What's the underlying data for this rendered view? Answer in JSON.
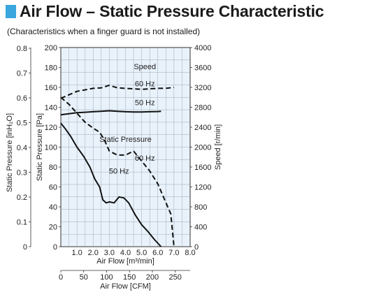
{
  "header": {
    "title": "Air Flow – Static Pressure Characteristic",
    "subtitle": "(Characteristics when a finger guard is not installed)",
    "accent_color": "#3aa6dd"
  },
  "chart_data": {
    "type": "line",
    "plot_background": "#e9f2fb",
    "grid": true,
    "axes": {
      "x_flow": {
        "label": "Air Flow [m³/min]",
        "range": [
          0,
          8.0
        ],
        "ticks": [
          "1.0",
          "2.0",
          "3.0",
          "4.0",
          "5.0",
          "6.0",
          "7.0",
          "8.0"
        ],
        "tick_values": [
          1,
          2,
          3,
          4,
          5,
          6,
          7,
          8
        ]
      },
      "x_cfm": {
        "label": "Air Flow [CFM]",
        "range": [
          0,
          282.5
        ],
        "ticks": [
          "0",
          "50",
          "100",
          "150",
          "200",
          "250"
        ],
        "tick_values": [
          0,
          50,
          100,
          150,
          200,
          250
        ]
      },
      "y_pa": {
        "label": "Static Pressure [Pa]",
        "range": [
          0,
          200
        ],
        "ticks": [
          "0",
          "20",
          "40",
          "60",
          "80",
          "100",
          "120",
          "140",
          "160",
          "180",
          "200"
        ],
        "tick_values": [
          0,
          20,
          40,
          60,
          80,
          100,
          120,
          140,
          160,
          180,
          200
        ]
      },
      "y_inh2o": {
        "label": "Static Pressure [inH₂O]",
        "range": [
          0,
          0.803
        ],
        "ticks": [
          "0",
          "0.1",
          "0.2",
          "0.3",
          "0.4",
          "0.5",
          "0.6",
          "0.7",
          "0.8"
        ],
        "tick_values": [
          0,
          0.1,
          0.2,
          0.3,
          0.4,
          0.5,
          0.6,
          0.7,
          0.8
        ]
      },
      "y_speed": {
        "label": "Speed [r/min]",
        "range": [
          0,
          4000
        ],
        "ticks": [
          "0",
          "400",
          "800",
          "1200",
          "1600",
          "2000",
          "2400",
          "2800",
          "3200",
          "3600",
          "4000"
        ],
        "tick_values": [
          0,
          400,
          800,
          1200,
          1600,
          2000,
          2400,
          2800,
          3200,
          3600,
          4000
        ]
      }
    },
    "series": [
      {
        "name": "Static Pressure 50 Hz",
        "axis": "pressure",
        "style": "solid",
        "x": [
          0,
          0.3,
          0.6,
          1.0,
          1.4,
          1.8,
          2.1,
          2.4,
          2.6,
          2.8,
          3.0,
          3.3,
          3.6,
          3.9,
          4.2,
          4.6,
          5.0,
          5.4,
          5.8,
          6.2
        ],
        "y": [
          124,
          118,
          111,
          100,
          91,
          80,
          68,
          60,
          47,
          44,
          45,
          44,
          50,
          49,
          44,
          32,
          22,
          15,
          7,
          0
        ]
      },
      {
        "name": "Static Pressure 60 Hz",
        "axis": "pressure",
        "style": "dashed",
        "x": [
          0,
          0.5,
          1.0,
          1.5,
          2.0,
          2.4,
          2.7,
          3.0,
          3.5,
          4.0,
          4.5,
          5.0,
          5.5,
          6.0,
          6.4,
          6.8,
          7.0
        ],
        "y": [
          150,
          143,
          134,
          125,
          119,
          115,
          107,
          96,
          92,
          92,
          96,
          86,
          76,
          63,
          48,
          33,
          0
        ]
      },
      {
        "name": "Speed 60 Hz",
        "axis": "speed",
        "style": "dashed",
        "x": [
          0,
          0.5,
          1.0,
          1.5,
          2.0,
          2.5,
          3.0,
          3.5,
          4.0,
          4.5,
          5.0,
          5.5,
          6.0,
          6.5,
          7.0
        ],
        "y": [
          2980,
          3050,
          3120,
          3150,
          3180,
          3190,
          3240,
          3190,
          3180,
          3170,
          3160,
          3170,
          3180,
          3180,
          3200
        ]
      },
      {
        "name": "Speed 50 Hz",
        "axis": "speed",
        "style": "solid",
        "x": [
          0,
          0.5,
          1.0,
          1.5,
          2.0,
          2.5,
          3.0,
          3.5,
          4.0,
          4.5,
          5.0,
          5.5,
          6.0,
          6.2
        ],
        "y": [
          2650,
          2670,
          2690,
          2700,
          2710,
          2720,
          2730,
          2720,
          2710,
          2705,
          2705,
          2710,
          2715,
          2720
        ]
      }
    ],
    "annotations": [
      {
        "text": "Speed",
        "x": 5.2,
        "y_pa": 181
      },
      {
        "text": "60 Hz",
        "x": 5.2,
        "y_pa": 164
      },
      {
        "text": "50 Hz",
        "x": 5.2,
        "y_pa": 145
      },
      {
        "text": "Static Pressure",
        "x": 4.0,
        "y_pa": 108
      },
      {
        "text": "60 Hz",
        "x": 5.2,
        "y_pa": 89
      },
      {
        "text": "50 Hz",
        "x": 3.6,
        "y_pa": 76
      }
    ]
  }
}
